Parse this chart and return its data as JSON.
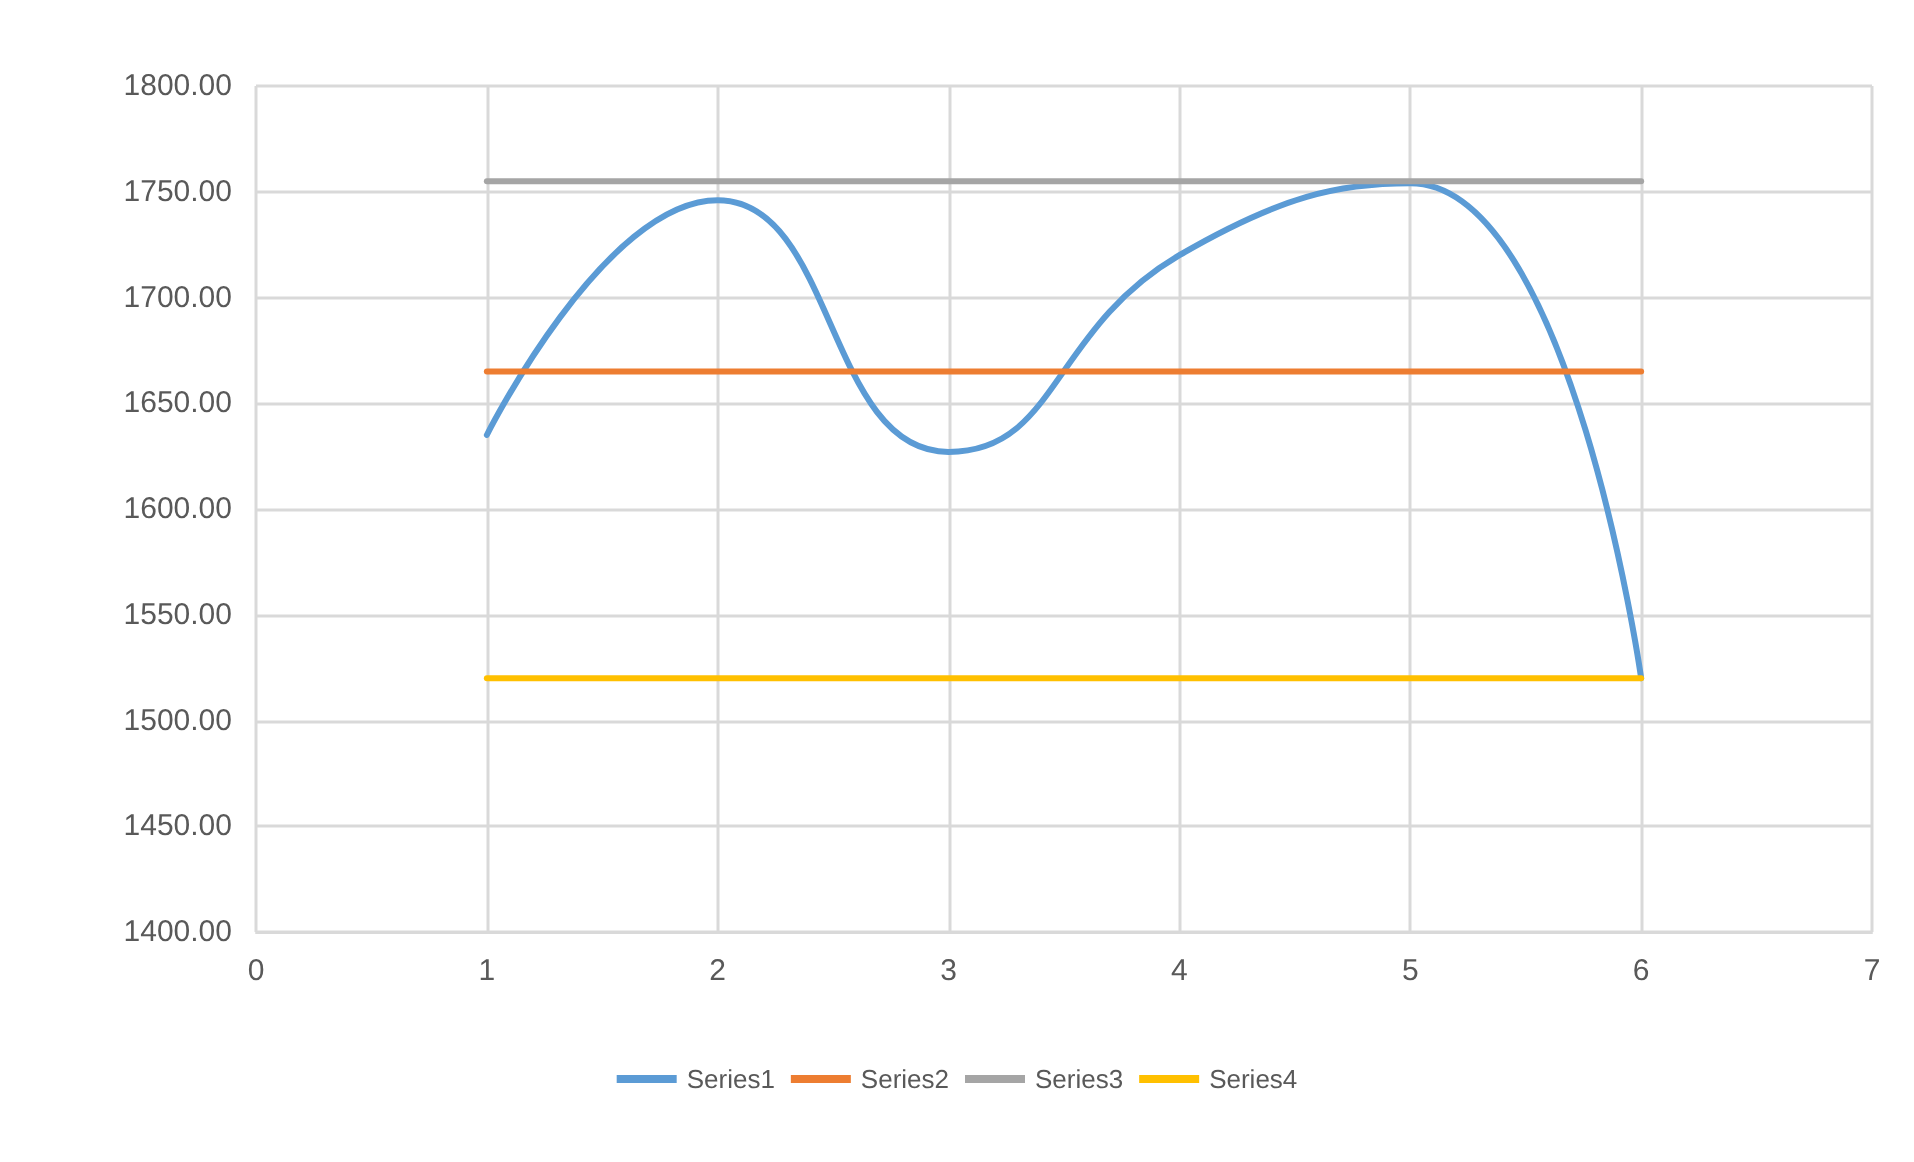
{
  "chart_data": {
    "type": "line",
    "x": [
      1,
      2,
      3,
      4,
      5,
      6
    ],
    "series": [
      {
        "name": "Series1",
        "color": "#5b9bd5",
        "values": [
          1635,
          1746,
          1627,
          1720,
          1754,
          1520
        ]
      },
      {
        "name": "Series2",
        "color": "#ed7d31",
        "values": [
          1665,
          1665,
          1665,
          1665,
          1665,
          1665
        ]
      },
      {
        "name": "Series3",
        "color": "#a5a5a5",
        "values": [
          1755,
          1755,
          1755,
          1755,
          1755,
          1755
        ]
      },
      {
        "name": "Series4",
        "color": "#ffc000",
        "values": [
          1520,
          1520,
          1520,
          1520,
          1520,
          1520
        ]
      }
    ],
    "xlim": [
      0,
      7
    ],
    "xticks": [
      0,
      1,
      2,
      3,
      4,
      5,
      6,
      7
    ],
    "ylim": [
      1400,
      1800
    ],
    "yticks": [
      {
        "value": 1400,
        "label": "1400.00"
      },
      {
        "value": 1450,
        "label": "1450.00"
      },
      {
        "value": 1500,
        "label": "1500.00"
      },
      {
        "value": 1550,
        "label": "1550.00"
      },
      {
        "value": 1600,
        "label": "1600.00"
      },
      {
        "value": 1650,
        "label": "1650.00"
      },
      {
        "value": 1700,
        "label": "1700.00"
      },
      {
        "value": 1750,
        "label": "1750.00"
      },
      {
        "value": 1800,
        "label": "1800.00"
      }
    ],
    "grid": true,
    "legend": "bottom",
    "marker": "none",
    "line_style": "solid"
  }
}
